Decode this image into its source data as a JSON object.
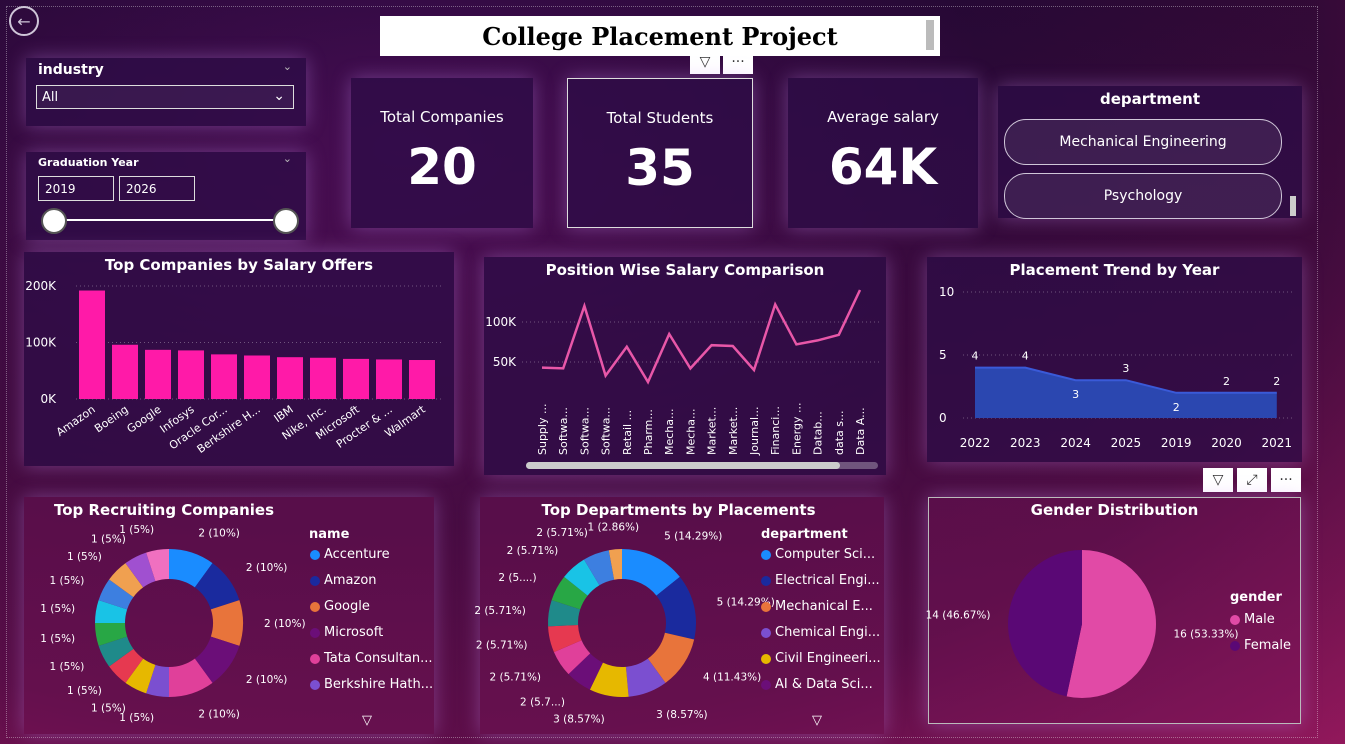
{
  "header": {
    "title": "College Placement Project"
  },
  "industry_slicer": {
    "label": "industry",
    "value": "All"
  },
  "grad_year_slicer": {
    "label": "Graduation Year",
    "from": "2019",
    "to": "2026"
  },
  "kpis": [
    {
      "label": "Total Companies",
      "value": "20"
    },
    {
      "label": "Total Students",
      "value": "35"
    },
    {
      "label": "Average salary",
      "value": "64K"
    }
  ],
  "department_slicer": {
    "label": "department",
    "items": [
      "Mechanical Engineering",
      "Psychology"
    ]
  },
  "icons": {
    "back": "back-arrow-icon",
    "filter": "filter-icon",
    "more": "more-options-icon",
    "focus": "focus-mode-icon"
  },
  "colors": {
    "bar": "#ff1aa8",
    "line": "#e857a8",
    "area": "#2b47b0",
    "male": "#e14aa6",
    "female": "#5a0875"
  },
  "chart_data": [
    {
      "type": "bar",
      "title": "Top Companies by Salary Offers",
      "categories": [
        "Amazon",
        "Boeing",
        "Google",
        "Infosys",
        "Oracle Cor...",
        "Berkshire H...",
        "IBM",
        "Nike, Inc.",
        "Microsoft",
        "Procter & ...",
        "Walmart"
      ],
      "values": [
        192000,
        96000,
        87000,
        86000,
        79000,
        77000,
        74000,
        73000,
        71000,
        70000,
        69000
      ],
      "yticks": [
        "0K",
        "100K",
        "200K"
      ],
      "ylim": [
        0,
        200000
      ]
    },
    {
      "type": "line",
      "title": "Position Wise Salary Comparison",
      "categories": [
        "Supply ...",
        "Softwa...",
        "Softwa...",
        "Softwa...",
        "Retail ...",
        "Pharm...",
        "Mecha...",
        "Mecha...",
        "Market...",
        "Market...",
        "Journal...",
        "Financi...",
        "Energy ...",
        "Datab...",
        "data s...",
        "Data A..."
      ],
      "values": [
        43000,
        42000,
        120000,
        33000,
        69000,
        25000,
        85000,
        42000,
        71000,
        70000,
        40000,
        122000,
        72000,
        77000,
        84000,
        140000
      ],
      "yticks": [
        "50K",
        "100K"
      ],
      "ylim": [
        0,
        150000
      ]
    },
    {
      "type": "area",
      "title": "Placement Trend by Year",
      "categories": [
        "2022",
        "2023",
        "2024",
        "2025",
        "2019",
        "2020",
        "2021"
      ],
      "values": [
        4,
        4,
        3,
        3,
        2,
        2,
        2
      ],
      "yticks": [
        "0",
        "5",
        "10"
      ],
      "ylim": [
        0,
        10
      ]
    },
    {
      "type": "pie",
      "title": "Top Recruiting Companies",
      "legend_title": "name",
      "legend": [
        "Accenture",
        "Amazon",
        "Google",
        "Microsoft",
        "Tata Consultan...",
        "Berkshire Hath..."
      ],
      "slices": [
        {
          "value": 2,
          "label": "2 (10%)",
          "color": "#1a8cff"
        },
        {
          "value": 2,
          "label": "2 (10%)",
          "color": "#1a2a9e"
        },
        {
          "value": 2,
          "label": "2 (10%)",
          "color": "#e8743b"
        },
        {
          "value": 2,
          "label": "2 (10%)",
          "color": "#6b0e78"
        },
        {
          "value": 2,
          "label": "2 (10%)",
          "color": "#e0409a"
        },
        {
          "value": 1,
          "label": "1 (5%)",
          "color": "#7b4fd0"
        },
        {
          "value": 1,
          "label": "1 (5%)",
          "color": "#e6b800"
        },
        {
          "value": 1,
          "label": "1 (5%)",
          "color": "#e63950"
        },
        {
          "value": 1,
          "label": "1 (5%)",
          "color": "#1f8a8a"
        },
        {
          "value": 1,
          "label": "1 (5%)",
          "color": "#28a745"
        },
        {
          "value": 1,
          "label": "1 (5%)",
          "color": "#19c3e6"
        },
        {
          "value": 1,
          "label": "1 (5%)",
          "color": "#3d7fe0"
        },
        {
          "value": 1,
          "label": "1 (5%)",
          "color": "#f0a050"
        },
        {
          "value": 1,
          "label": "1 (5%)",
          "color": "#a050d0"
        },
        {
          "value": 1,
          "label": "1 (5%)",
          "color": "#f070c0"
        }
      ]
    },
    {
      "type": "pie",
      "title": "Top Departments by Placements",
      "legend_title": "department",
      "legend": [
        "Computer Sci...",
        "Electrical Engi...",
        "Mechanical E...",
        "Chemical Engi...",
        "Civil Engineeri...",
        "AI & Data Sci..."
      ],
      "slices": [
        {
          "value": 5,
          "label": "5 (14.29%)",
          "color": "#1a8cff"
        },
        {
          "value": 5,
          "label": "5 (14.29%)",
          "color": "#1a2a9e"
        },
        {
          "value": 4,
          "label": "4 (11.43%)",
          "color": "#e8743b"
        },
        {
          "value": 3,
          "label": "3 (8.57%)",
          "color": "#7b4fd0"
        },
        {
          "value": 3,
          "label": "3 (8.57%)",
          "color": "#e6b800"
        },
        {
          "value": 2,
          "label": "2 (5.7...)",
          "color": "#6b0e78"
        },
        {
          "value": 2,
          "label": "2 (5.71%)",
          "color": "#e0409a"
        },
        {
          "value": 2,
          "label": "2 (5.71%)",
          "color": "#e63950"
        },
        {
          "value": 2,
          "label": "2 (5.71%)",
          "color": "#1f8a8a"
        },
        {
          "value": 2,
          "label": "2 (5....)",
          "color": "#28a745"
        },
        {
          "value": 2,
          "label": "2 (5.71%)",
          "color": "#19c3e6"
        },
        {
          "value": 2,
          "label": "2 (5.71%)",
          "color": "#3d7fe0"
        },
        {
          "value": 1,
          "label": "1 (2.86%)",
          "color": "#f0a050"
        }
      ]
    },
    {
      "type": "pie",
      "title": "Gender Distribution",
      "legend_title": "gender",
      "legend": [
        "Male",
        "Female"
      ],
      "slices": [
        {
          "value": 16,
          "label": "16 (53.33%)",
          "color": "#e14aa6"
        },
        {
          "value": 14,
          "label": "14 (46.67%)",
          "color": "#5a0875"
        }
      ]
    }
  ]
}
